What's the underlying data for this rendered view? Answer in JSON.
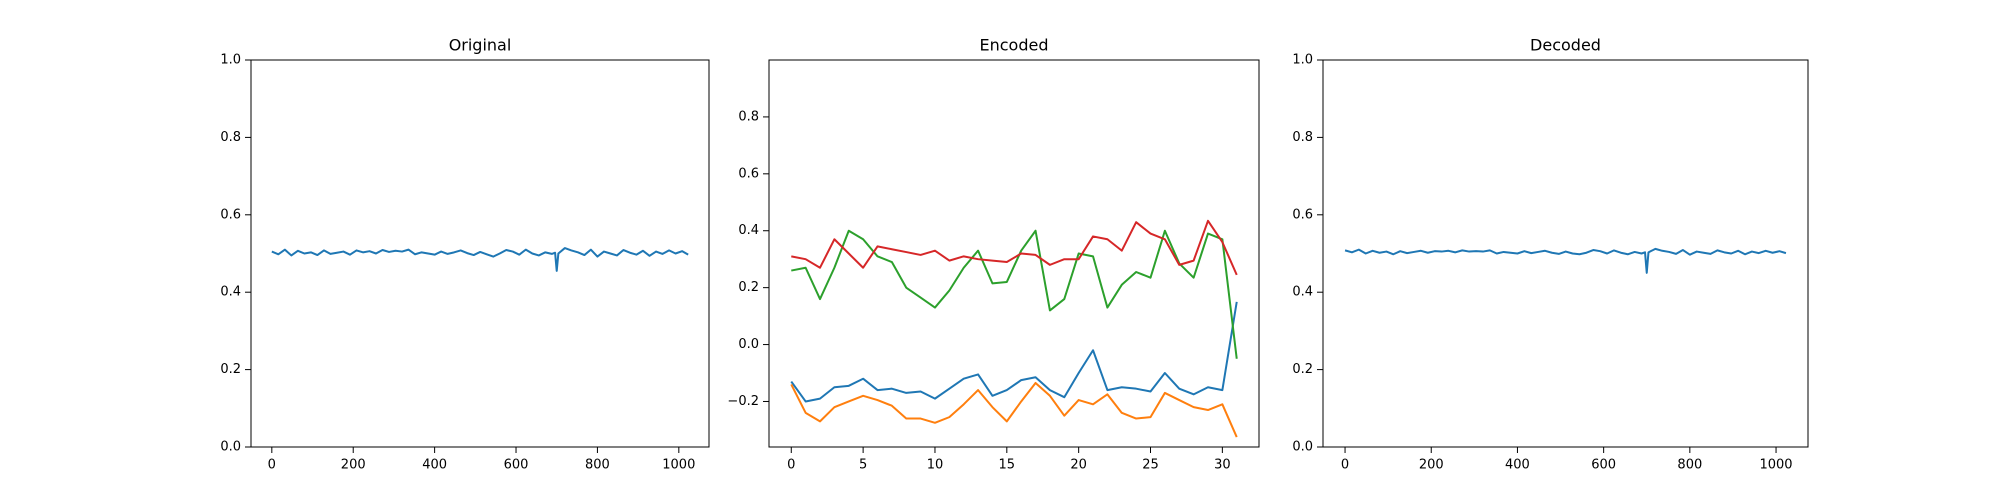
{
  "chart_data": [
    {
      "type": "line",
      "title": "Original",
      "x": [
        0,
        16,
        32,
        48,
        64,
        80,
        96,
        112,
        128,
        144,
        160,
        176,
        192,
        208,
        224,
        240,
        256,
        272,
        288,
        304,
        320,
        336,
        352,
        368,
        384,
        400,
        416,
        432,
        448,
        464,
        480,
        496,
        512,
        528,
        544,
        560,
        576,
        592,
        608,
        624,
        640,
        656,
        672,
        688,
        696,
        700,
        704,
        720,
        736,
        752,
        768,
        784,
        800,
        816,
        832,
        848,
        864,
        880,
        896,
        912,
        928,
        944,
        960,
        976,
        992,
        1008,
        1023
      ],
      "series": [
        {
          "color": "#1f77b4",
          "values": [
            0.505,
            0.498,
            0.51,
            0.495,
            0.507,
            0.5,
            0.503,
            0.496,
            0.508,
            0.499,
            0.502,
            0.505,
            0.497,
            0.508,
            0.503,
            0.506,
            0.5,
            0.509,
            0.504,
            0.507,
            0.505,
            0.51,
            0.498,
            0.503,
            0.5,
            0.497,
            0.505,
            0.499,
            0.503,
            0.508,
            0.501,
            0.496,
            0.504,
            0.498,
            0.492,
            0.5,
            0.509,
            0.505,
            0.497,
            0.51,
            0.5,
            0.495,
            0.503,
            0.499,
            0.502,
            0.455,
            0.5,
            0.514,
            0.508,
            0.503,
            0.496,
            0.51,
            0.492,
            0.505,
            0.5,
            0.495,
            0.509,
            0.502,
            0.497,
            0.507,
            0.494,
            0.505,
            0.499,
            0.508,
            0.5,
            0.506,
            0.497
          ]
        }
      ],
      "xlim": [
        -51.15,
        1074.15
      ],
      "ylim": [
        0,
        1
      ],
      "xticks": [
        0,
        200,
        400,
        600,
        800,
        1000
      ],
      "yticks": [
        {
          "value": 0,
          "label": "0.0"
        },
        {
          "value": 0.2,
          "label": "0.2"
        },
        {
          "value": 0.4,
          "label": "0.4"
        },
        {
          "value": 0.6,
          "label": "0.6"
        },
        {
          "value": 0.8,
          "label": "0.8"
        },
        {
          "value": 1,
          "label": "1.0"
        }
      ]
    },
    {
      "type": "line",
      "title": "Encoded",
      "x": [
        0,
        1,
        2,
        3,
        4,
        5,
        6,
        7,
        8,
        9,
        10,
        11,
        12,
        13,
        14,
        15,
        16,
        17,
        18,
        19,
        20,
        21,
        22,
        23,
        24,
        25,
        26,
        27,
        28,
        29,
        30,
        31
      ],
      "series": [
        {
          "color": "#1f77b4",
          "values": [
            -0.13,
            -0.2,
            -0.19,
            -0.15,
            -0.145,
            -0.12,
            -0.16,
            -0.155,
            -0.17,
            -0.165,
            -0.19,
            -0.155,
            -0.12,
            -0.105,
            -0.18,
            -0.16,
            -0.125,
            -0.115,
            -0.16,
            -0.185,
            -0.1,
            -0.02,
            -0.16,
            -0.15,
            -0.155,
            -0.165,
            -0.1,
            -0.155,
            -0.175,
            -0.15,
            -0.16,
            0.15
          ]
        },
        {
          "color": "#ff7f0e",
          "values": [
            -0.14,
            -0.24,
            -0.27,
            -0.22,
            -0.2,
            -0.18,
            -0.195,
            -0.215,
            -0.26,
            -0.26,
            -0.275,
            -0.255,
            -0.21,
            -0.16,
            -0.22,
            -0.27,
            -0.2,
            -0.135,
            -0.18,
            -0.25,
            -0.195,
            -0.21,
            -0.175,
            -0.24,
            -0.26,
            -0.255,
            -0.17,
            -0.195,
            -0.22,
            -0.23,
            -0.21,
            -0.325
          ]
        },
        {
          "color": "#2ca02c",
          "values": [
            0.26,
            0.27,
            0.16,
            0.27,
            0.4,
            0.37,
            0.31,
            0.29,
            0.2,
            0.165,
            0.13,
            0.19,
            0.27,
            0.33,
            0.215,
            0.22,
            0.33,
            0.4,
            0.12,
            0.16,
            0.32,
            0.31,
            0.13,
            0.21,
            0.255,
            0.235,
            0.4,
            0.285,
            0.235,
            0.39,
            0.37,
            -0.05
          ]
        },
        {
          "color": "#d62728",
          "values": [
            0.31,
            0.3,
            0.27,
            0.37,
            0.32,
            0.27,
            0.345,
            0.335,
            0.325,
            0.315,
            0.33,
            0.295,
            0.31,
            0.3,
            0.295,
            0.29,
            0.32,
            0.315,
            0.28,
            0.3,
            0.3,
            0.38,
            0.37,
            0.33,
            0.43,
            0.39,
            0.37,
            0.28,
            0.295,
            0.435,
            0.36,
            0.245
          ]
        }
      ],
      "xlim": [
        -1.55,
        32.55
      ],
      "ylim": [
        -0.36,
        1.0
      ],
      "xticks": [
        0,
        5,
        10,
        15,
        20,
        25,
        30
      ],
      "yticks": [
        {
          "value": -0.2,
          "label": "−0.2"
        },
        {
          "value": 0,
          "label": "0.0"
        },
        {
          "value": 0.2,
          "label": "0.2"
        },
        {
          "value": 0.4,
          "label": "0.4"
        },
        {
          "value": 0.6,
          "label": "0.6"
        },
        {
          "value": 0.8,
          "label": "0.8"
        }
      ]
    },
    {
      "type": "line",
      "title": "Decoded",
      "x": [
        0,
        16,
        32,
        48,
        64,
        80,
        96,
        112,
        128,
        144,
        160,
        176,
        192,
        208,
        224,
        240,
        256,
        272,
        288,
        304,
        320,
        336,
        352,
        368,
        384,
        400,
        416,
        432,
        448,
        464,
        480,
        496,
        512,
        528,
        544,
        560,
        576,
        592,
        608,
        624,
        640,
        656,
        672,
        688,
        696,
        700,
        704,
        720,
        736,
        752,
        768,
        784,
        800,
        816,
        832,
        848,
        864,
        880,
        896,
        912,
        928,
        944,
        960,
        976,
        992,
        1008,
        1023
      ],
      "series": [
        {
          "color": "#1f77b4",
          "values": [
            0.508,
            0.503,
            0.51,
            0.5,
            0.507,
            0.502,
            0.505,
            0.498,
            0.506,
            0.501,
            0.504,
            0.507,
            0.502,
            0.506,
            0.505,
            0.507,
            0.503,
            0.508,
            0.505,
            0.506,
            0.505,
            0.508,
            0.5,
            0.504,
            0.502,
            0.5,
            0.506,
            0.501,
            0.504,
            0.507,
            0.502,
            0.499,
            0.505,
            0.5,
            0.498,
            0.502,
            0.509,
            0.506,
            0.5,
            0.508,
            0.502,
            0.498,
            0.504,
            0.5,
            0.503,
            0.45,
            0.503,
            0.512,
            0.507,
            0.504,
            0.499,
            0.509,
            0.497,
            0.505,
            0.502,
            0.499,
            0.508,
            0.503,
            0.5,
            0.507,
            0.498,
            0.505,
            0.501,
            0.507,
            0.502,
            0.506,
            0.501
          ]
        }
      ],
      "xlim": [
        -51.15,
        1074.15
      ],
      "ylim": [
        0,
        1
      ],
      "xticks": [
        0,
        200,
        400,
        600,
        800,
        1000
      ],
      "yticks": [
        {
          "value": 0,
          "label": "0.0"
        },
        {
          "value": 0.2,
          "label": "0.2"
        },
        {
          "value": 0.4,
          "label": "0.4"
        },
        {
          "value": 0.6,
          "label": "0.6"
        },
        {
          "value": 0.8,
          "label": "0.8"
        },
        {
          "value": 1,
          "label": "1.0"
        }
      ]
    }
  ]
}
